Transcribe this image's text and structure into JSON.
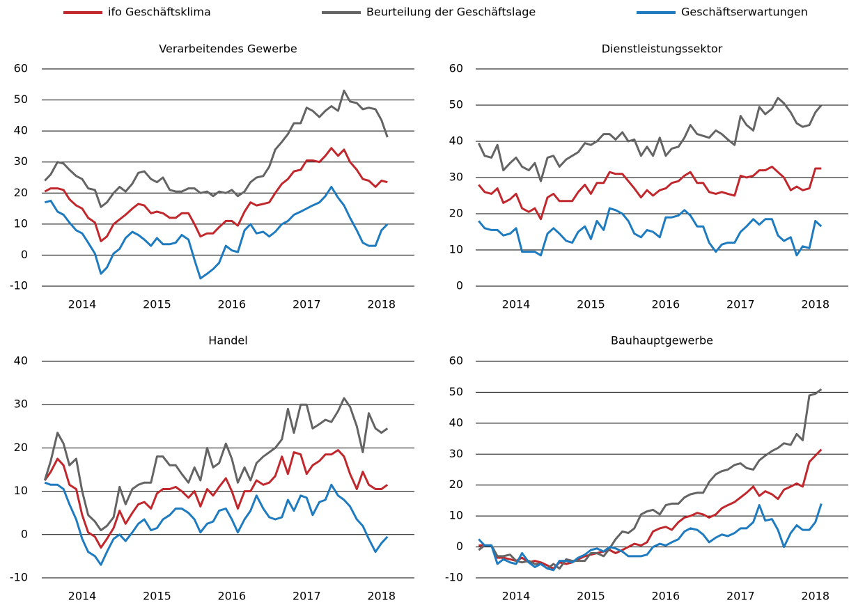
{
  "chart_data": [
    {
      "type": "line",
      "title": "Verarbeitendes Gewerbe",
      "legend": "top",
      "grid": true,
      "x": [
        2014,
        2014.08,
        2014.17,
        2014.25,
        2014.33,
        2014.42,
        2014.5,
        2014.58,
        2014.67,
        2014.75,
        2014.83,
        2014.92,
        2015,
        2015.08,
        2015.17,
        2015.25,
        2015.33,
        2015.42,
        2015.5,
        2015.58,
        2015.67,
        2015.75,
        2015.83,
        2015.92,
        2016,
        2016.08,
        2016.17,
        2016.25,
        2016.33,
        2016.42,
        2016.5,
        2016.58,
        2016.67,
        2016.75,
        2016.83,
        2016.92,
        2017,
        2017.08,
        2017.17,
        2017.25,
        2017.33,
        2017.42,
        2017.5,
        2017.58,
        2017.67,
        2017.75,
        2017.83,
        2017.92,
        2018,
        2018.08,
        2018.17,
        2018.25,
        2018.33,
        2018.42,
        2018.5,
        2018.58
      ],
      "xlim": [
        2013.96,
        2018.94
      ],
      "xticks": [
        {
          "value": 2014.5,
          "label": "2014"
        },
        {
          "value": 2015.5,
          "label": "2015"
        },
        {
          "value": 2016.5,
          "label": "2016"
        },
        {
          "value": 2017.5,
          "label": "2017"
        },
        {
          "value": 2018.5,
          "label": "2018"
        }
      ],
      "ylim": [
        -10,
        60
      ],
      "yticks": [
        -10,
        0,
        10,
        20,
        30,
        40,
        50,
        60
      ],
      "series": [
        {
          "name": "ifo Geschäftsklima",
          "color": "#c0282d",
          "values": [
            20.5,
            21.5,
            21.5,
            21,
            18,
            16,
            15,
            12,
            10.5,
            4.5,
            6,
            10,
            11.5,
            13,
            15,
            16.5,
            16,
            13.5,
            14,
            13.5,
            12,
            12,
            13.5,
            13.5,
            10,
            6,
            7,
            7,
            9,
            11,
            11,
            9.5,
            14,
            17,
            16,
            16.5,
            17,
            20,
            23,
            24.5,
            27,
            27.5,
            30.5,
            30.5,
            30,
            32,
            34.5,
            32,
            34,
            30,
            27.5,
            24.5,
            24,
            22,
            24,
            23.5
          ]
        },
        {
          "name": "Beurteilung der Geschäftslage",
          "color": "#646464",
          "values": [
            24,
            26,
            30,
            29.5,
            27.5,
            25.5,
            24.5,
            21.5,
            21,
            15.5,
            17,
            20,
            22,
            20.5,
            23,
            26.5,
            27,
            24.5,
            23.5,
            25,
            21,
            20.5,
            20.5,
            21.5,
            21.5,
            20,
            20.5,
            19,
            20.5,
            20,
            21,
            19,
            20.5,
            23.5,
            25,
            25.5,
            28.5,
            34,
            36.5,
            39,
            42.5,
            42.5,
            47.5,
            46.5,
            44.5,
            46.5,
            48,
            46.5,
            53,
            49.5,
            49,
            47,
            47.5,
            47,
            43.5,
            38
          ]
        },
        {
          "name": "Geschäftserwartungen",
          "color": "#1f7bbf",
          "values": [
            17,
            17.5,
            14,
            13,
            10.5,
            8,
            7,
            4,
            0.5,
            -6,
            -4,
            0.5,
            2,
            5.5,
            7.5,
            6.5,
            5,
            3,
            5.5,
            3.5,
            3.5,
            4,
            6.5,
            5,
            -1.5,
            -7.5,
            -6,
            -4.5,
            -2.5,
            3,
            1.5,
            1,
            8,
            10,
            7,
            7.5,
            6,
            7.5,
            10,
            11,
            13,
            14,
            15,
            16,
            17,
            19,
            22,
            18.5,
            16,
            12,
            8,
            4,
            3,
            3,
            8,
            10
          ]
        }
      ]
    },
    {
      "type": "line",
      "title": "Dienstleistungssektor",
      "grid": true,
      "x": [
        2014,
        2014.08,
        2014.17,
        2014.25,
        2014.33,
        2014.42,
        2014.5,
        2014.58,
        2014.67,
        2014.75,
        2014.83,
        2014.92,
        2015,
        2015.08,
        2015.17,
        2015.25,
        2015.33,
        2015.42,
        2015.5,
        2015.58,
        2015.67,
        2015.75,
        2015.83,
        2015.92,
        2016,
        2016.08,
        2016.17,
        2016.25,
        2016.33,
        2016.42,
        2016.5,
        2016.58,
        2016.67,
        2016.75,
        2016.83,
        2016.92,
        2017,
        2017.08,
        2017.17,
        2017.25,
        2017.33,
        2017.42,
        2017.5,
        2017.58,
        2017.67,
        2017.75,
        2017.83,
        2017.92,
        2018,
        2018.08,
        2018.17,
        2018.25,
        2018.33,
        2018.42,
        2018.5,
        2018.58
      ],
      "xlim": [
        2013.96,
        2018.94
      ],
      "xticks": [
        {
          "value": 2014.5,
          "label": "2014"
        },
        {
          "value": 2015.5,
          "label": "2015"
        },
        {
          "value": 2016.5,
          "label": "2016"
        },
        {
          "value": 2017.5,
          "label": "2017"
        },
        {
          "value": 2018.5,
          "label": "2018"
        }
      ],
      "ylim": [
        0,
        60
      ],
      "yticks": [
        0,
        10,
        20,
        30,
        40,
        50,
        60
      ],
      "series": [
        {
          "name": "ifo Geschäftsklima",
          "color": "#c0282d",
          "values": [
            28,
            26,
            25.5,
            27,
            23,
            24,
            25.5,
            21.5,
            20.5,
            21.5,
            18.5,
            24.5,
            25.5,
            23.5,
            23.5,
            23.5,
            26,
            28,
            25.5,
            28.5,
            28.5,
            31.5,
            31,
            31,
            29,
            27,
            24.5,
            26.5,
            25,
            26.5,
            27,
            28.5,
            29,
            30.5,
            31.5,
            28.5,
            28.5,
            26,
            25.5,
            26,
            25.5,
            25,
            30.5,
            30,
            30.5,
            32,
            32,
            33,
            31.5,
            30,
            26.5,
            27.5,
            26.5,
            27,
            32.5,
            32.5
          ]
        },
        {
          "name": "Beurteilung der Geschäftslage",
          "color": "#646464",
          "values": [
            39.5,
            36,
            35.5,
            39,
            32,
            34,
            35.5,
            33,
            32,
            34,
            29,
            35.5,
            36,
            33,
            35,
            36,
            37,
            39.5,
            39,
            40,
            42,
            42,
            40.5,
            42.5,
            40,
            40.5,
            36,
            38.5,
            36,
            41,
            36,
            38,
            38.5,
            41,
            44.5,
            42,
            41.5,
            41,
            43,
            42,
            40.5,
            39,
            47,
            44.5,
            43,
            49.5,
            47.5,
            49,
            52,
            50.5,
            48,
            45,
            44,
            44.5,
            48,
            50
          ]
        },
        {
          "name": "Geschäftserwartungen",
          "color": "#1f7bbf",
          "values": [
            18,
            16,
            15.5,
            15.5,
            14,
            14.5,
            16,
            9.5,
            9.5,
            9.5,
            8.5,
            14.5,
            16,
            14.5,
            12.5,
            12,
            15,
            16.5,
            13,
            18,
            15.5,
            21.5,
            21,
            20,
            18,
            14.5,
            13.5,
            15.5,
            15,
            13.5,
            19,
            19,
            19.5,
            21,
            19.5,
            16.5,
            16.5,
            12,
            9.5,
            11.5,
            12,
            12,
            15,
            16.5,
            18.5,
            17,
            18.5,
            18.5,
            14,
            12.5,
            13.5,
            8.5,
            11,
            10.5,
            18,
            16.5
          ]
        }
      ]
    },
    {
      "type": "line",
      "title": "Handel",
      "grid": true,
      "x": [
        2014,
        2014.08,
        2014.17,
        2014.25,
        2014.33,
        2014.42,
        2014.5,
        2014.58,
        2014.67,
        2014.75,
        2014.83,
        2014.92,
        2015,
        2015.08,
        2015.17,
        2015.25,
        2015.33,
        2015.42,
        2015.5,
        2015.58,
        2015.67,
        2015.75,
        2015.83,
        2015.92,
        2016,
        2016.08,
        2016.17,
        2016.25,
        2016.33,
        2016.42,
        2016.5,
        2016.58,
        2016.67,
        2016.75,
        2016.83,
        2016.92,
        2017,
        2017.08,
        2017.17,
        2017.25,
        2017.33,
        2017.42,
        2017.5,
        2017.58,
        2017.67,
        2017.75,
        2017.83,
        2017.92,
        2018,
        2018.08,
        2018.17,
        2018.25,
        2018.33,
        2018.42,
        2018.5,
        2018.58
      ],
      "xlim": [
        2013.96,
        2018.94
      ],
      "xticks": [
        {
          "value": 2014.5,
          "label": "2014"
        },
        {
          "value": 2015.5,
          "label": "2015"
        },
        {
          "value": 2016.5,
          "label": "2016"
        },
        {
          "value": 2017.5,
          "label": "2017"
        },
        {
          "value": 2018.5,
          "label": "2018"
        }
      ],
      "ylim": [
        -10,
        40
      ],
      "yticks": [
        -10,
        0,
        10,
        20,
        30,
        40
      ],
      "series": [
        {
          "name": "ifo Geschäftsklima",
          "color": "#c0282d",
          "values": [
            12.5,
            14.5,
            17.5,
            16,
            11.5,
            10.5,
            4.5,
            0.5,
            -0.5,
            -3,
            -1,
            1.5,
            5.5,
            2.5,
            5,
            7,
            7.5,
            6,
            9.5,
            10.5,
            10.5,
            11,
            10,
            8.5,
            10,
            6.5,
            10.5,
            9,
            11,
            13,
            10,
            6,
            10,
            10,
            12.5,
            11.5,
            12,
            13.5,
            18,
            14,
            19,
            18.5,
            14,
            16,
            17,
            18.5,
            18.5,
            19.5,
            18,
            14,
            10.5,
            14.5,
            11.5,
            10.5,
            10.5,
            11.5
          ]
        },
        {
          "name": "Beurteilung der Geschäftslage",
          "color": "#646464",
          "values": [
            12.5,
            17,
            23.5,
            21,
            16,
            17.5,
            10,
            4.5,
            3,
            1,
            2,
            4,
            11,
            7,
            10.5,
            11.5,
            12,
            12,
            18,
            18,
            16,
            16,
            14,
            12,
            15.5,
            12.5,
            20,
            15.5,
            16.5,
            21,
            17.5,
            12,
            15.5,
            12.5,
            16.5,
            18,
            19,
            20,
            22,
            29,
            23.5,
            30,
            30,
            24.5,
            25.5,
            26.5,
            26,
            28.5,
            31.5,
            29.5,
            25,
            19,
            28,
            24.5,
            23.5,
            24.5
          ]
        },
        {
          "name": "Geschäftserwartungen",
          "color": "#1f7bbf",
          "values": [
            12,
            11.5,
            11.5,
            10.5,
            7,
            3.5,
            -1,
            -4,
            -5,
            -7,
            -4,
            -1,
            0,
            -1.5,
            0.5,
            2.5,
            3.5,
            1,
            1.5,
            3.5,
            4.5,
            6,
            6,
            5,
            3.5,
            0.5,
            2.5,
            3,
            5.5,
            6,
            3.5,
            0.5,
            3.5,
            5.5,
            9,
            6,
            4,
            3.5,
            4,
            8,
            5.5,
            9,
            8.5,
            4.5,
            7.5,
            8,
            11.5,
            9,
            8,
            6.5,
            3.5,
            2,
            -1,
            -4,
            -2,
            -0.5
          ]
        }
      ]
    },
    {
      "type": "line",
      "title": "Bauhauptgewerbe",
      "grid": true,
      "x": [
        2014,
        2014.08,
        2014.17,
        2014.25,
        2014.33,
        2014.42,
        2014.5,
        2014.58,
        2014.67,
        2014.75,
        2014.83,
        2014.92,
        2015,
        2015.08,
        2015.17,
        2015.25,
        2015.33,
        2015.42,
        2015.5,
        2015.58,
        2015.67,
        2015.75,
        2015.83,
        2015.92,
        2016,
        2016.08,
        2016.17,
        2016.25,
        2016.33,
        2016.42,
        2016.5,
        2016.58,
        2016.67,
        2016.75,
        2016.83,
        2016.92,
        2017,
        2017.08,
        2017.17,
        2017.25,
        2017.33,
        2017.42,
        2017.5,
        2017.58,
        2017.67,
        2017.75,
        2017.83,
        2017.92,
        2018,
        2018.08,
        2018.17,
        2018.25,
        2018.33,
        2018.42,
        2018.5,
        2018.58
      ],
      "xlim": [
        2013.96,
        2018.94
      ],
      "xticks": [
        {
          "value": 2014.5,
          "label": "2014"
        },
        {
          "value": 2015.5,
          "label": "2015"
        },
        {
          "value": 2016.5,
          "label": "2016"
        },
        {
          "value": 2017.5,
          "label": "2017"
        },
        {
          "value": 2018.5,
          "label": "2018"
        }
      ],
      "ylim": [
        -10,
        60
      ],
      "yticks": [
        -10,
        0,
        10,
        20,
        30,
        40,
        50,
        60
      ],
      "series": [
        {
          "name": "ifo Geschäftsklima",
          "color": "#c0282d",
          "values": [
            0.5,
            0.5,
            0.5,
            -3.5,
            -3.5,
            -4,
            -4.5,
            -3.5,
            -5,
            -4.5,
            -5,
            -6,
            -7,
            -5,
            -5.5,
            -5,
            -4,
            -3,
            -2.5,
            -2,
            -1.5,
            -1,
            -2,
            -1,
            0,
            1,
            0.5,
            1.5,
            5,
            6,
            6.5,
            5.5,
            8,
            9.5,
            10,
            11,
            10.5,
            9.5,
            10.5,
            12.5,
            13.5,
            14.5,
            16,
            17.5,
            19.5,
            16.5,
            18,
            17,
            15.5,
            18.5,
            19.5,
            20.5,
            19.5,
            27.5,
            29.5,
            31.5
          ]
        },
        {
          "name": "Beurteilung der Geschäftslage",
          "color": "#646464",
          "values": [
            -1,
            0.5,
            0.5,
            -3,
            -3,
            -2.5,
            -4.5,
            -5,
            -4.5,
            -5.5,
            -5.5,
            -7,
            -5.5,
            -7,
            -4,
            -4.5,
            -4.5,
            -4.5,
            -2,
            -2,
            -3,
            -0.5,
            2.5,
            5,
            4.5,
            6,
            10.5,
            11.5,
            12,
            10.5,
            13.5,
            14,
            14,
            16,
            17,
            17.5,
            17.5,
            21,
            23.5,
            24.5,
            25,
            26.5,
            27,
            25.5,
            25,
            28,
            29.5,
            31,
            32,
            33.5,
            33,
            36.5,
            34.5,
            49,
            49.5,
            51
          ]
        },
        {
          "name": "Geschäftserwartungen",
          "color": "#1f7bbf",
          "values": [
            2.5,
            0.5,
            0.5,
            -5.5,
            -4,
            -5,
            -5.5,
            -2,
            -5,
            -6.5,
            -5.5,
            -7,
            -7.5,
            -4.5,
            -4.5,
            -5,
            -3.5,
            -2.5,
            -1,
            -0.5,
            -1.5,
            0,
            -0.5,
            -1.5,
            -3,
            -3,
            -3,
            -2.5,
            0,
            1,
            0.5,
            1.5,
            2.5,
            5,
            6,
            5.5,
            4,
            1.5,
            3,
            4,
            3.5,
            4.5,
            6,
            6,
            8,
            13.5,
            8.5,
            9,
            5.5,
            0,
            4.5,
            7,
            5.5,
            5.5,
            8,
            14
          ]
        }
      ]
    }
  ]
}
